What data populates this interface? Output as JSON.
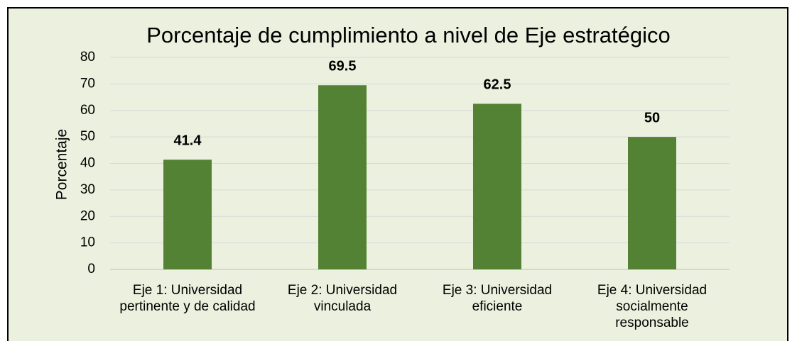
{
  "chart_data": {
    "type": "bar",
    "title": "Porcentaje de cumplimiento a nivel de Eje estratégico",
    "y_label": "Porcentaje",
    "categories": [
      "Eje 1: Universidad pertinente y de calidad",
      "Eje 2: Universidad vinculada",
      "Eje 3: Universidad eficiente",
      "Eje 4: Universidad socialmente responsable"
    ],
    "values": [
      41.4,
      69.5,
      62.5,
      50
    ],
    "color": "#548235",
    "ylim": [
      0,
      80
    ],
    "yticks": [
      0,
      10,
      20,
      30,
      40,
      50,
      60,
      70,
      80
    ],
    "grid": true
  }
}
